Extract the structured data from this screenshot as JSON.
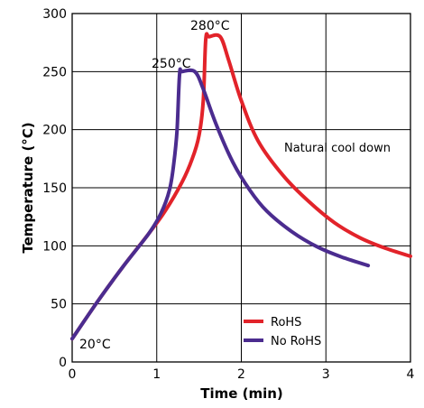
{
  "chart_data": {
    "type": "line",
    "xlabel": "Time (min)",
    "ylabel": "Temperature (°C)",
    "xlim": [
      0,
      4
    ],
    "ylim": [
      0,
      300
    ],
    "x_ticks": [
      "0",
      "1",
      "2",
      "3",
      "4"
    ],
    "y_ticks": [
      "0",
      "50",
      "100",
      "150",
      "200",
      "250",
      "300"
    ],
    "grid": true,
    "legend_position": "bottom-right",
    "series": [
      {
        "name": "RoHS",
        "color": "#e2232a",
        "points": [
          [
            0,
            20
          ],
          [
            0.3,
            52
          ],
          [
            0.6,
            82
          ],
          [
            0.9,
            110
          ],
          [
            1.1,
            130
          ],
          [
            1.3,
            155
          ],
          [
            1.42,
            175
          ],
          [
            1.5,
            195
          ],
          [
            1.55,
            225
          ],
          [
            1.58,
            278
          ],
          [
            1.62,
            280
          ],
          [
            1.75,
            280
          ],
          [
            1.85,
            260
          ],
          [
            2.0,
            225
          ],
          [
            2.2,
            190
          ],
          [
            2.5,
            160
          ],
          [
            2.8,
            138
          ],
          [
            3.1,
            120
          ],
          [
            3.4,
            107
          ],
          [
            3.7,
            98
          ],
          [
            4.0,
            91
          ]
        ]
      },
      {
        "name": "No RoHS",
        "color": "#4b2c8f",
        "points": [
          [
            0,
            20
          ],
          [
            0.3,
            52
          ],
          [
            0.6,
            82
          ],
          [
            0.9,
            110
          ],
          [
            1.05,
            128
          ],
          [
            1.15,
            148
          ],
          [
            1.2,
            170
          ],
          [
            1.24,
            200
          ],
          [
            1.27,
            248
          ],
          [
            1.3,
            250
          ],
          [
            1.45,
            250
          ],
          [
            1.55,
            235
          ],
          [
            1.7,
            205
          ],
          [
            1.9,
            172
          ],
          [
            2.1,
            148
          ],
          [
            2.3,
            130
          ],
          [
            2.6,
            112
          ],
          [
            2.9,
            99
          ],
          [
            3.2,
            90
          ],
          [
            3.5,
            83
          ]
        ]
      }
    ],
    "annotations": {
      "peak_rohs": "280°C",
      "peak_no_rohs": "250°C",
      "start": "20°C",
      "cool": "Natural cool down"
    }
  }
}
